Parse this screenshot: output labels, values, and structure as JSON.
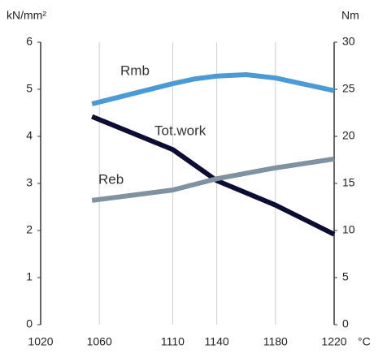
{
  "chart_data": {
    "type": "line",
    "y_label": "kN/mm²",
    "y2_label": "Nm",
    "x_label": "°C",
    "xlim": [
      1020,
      1220
    ],
    "xticks": [
      1020,
      1060,
      1110,
      1140,
      1180,
      1220
    ],
    "ylim": [
      0,
      6
    ],
    "yticks": [
      0,
      1,
      2,
      3,
      4,
      5,
      6
    ],
    "y2lim": [
      0,
      30
    ],
    "y2ticks": [
      0,
      5,
      10,
      15,
      20,
      25,
      30
    ],
    "grid": true,
    "series": [
      {
        "name": "Rmb",
        "color": "#4a9ad6",
        "x": [
          1055,
          1110,
          1125,
          1140,
          1160,
          1180,
          1220
        ],
        "values": [
          4.69,
          5.12,
          5.22,
          5.28,
          5.31,
          5.24,
          4.97
        ]
      },
      {
        "name": "Tot.work",
        "color": "#0d0d33",
        "axis": "y2",
        "x": [
          1055,
          1110,
          1140,
          1180,
          1220
        ],
        "values": [
          22.1,
          18.6,
          15.3,
          12.7,
          9.6
        ]
      },
      {
        "name": "Reb",
        "color": "#8092a0",
        "x": [
          1055,
          1110,
          1140,
          1180,
          1220
        ],
        "values": [
          2.64,
          2.86,
          3.1,
          3.33,
          3.52
        ]
      }
    ]
  }
}
